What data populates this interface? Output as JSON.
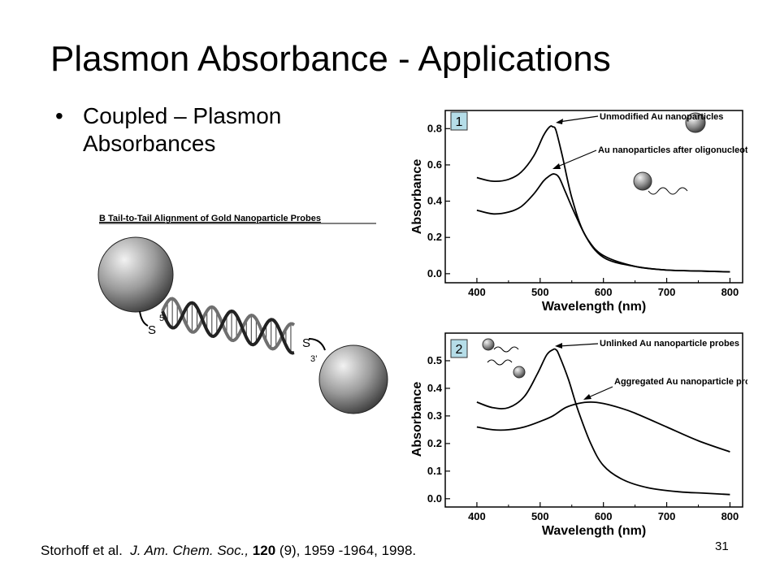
{
  "slide": {
    "title": "Plasmon Absorbance - Applications",
    "bullets": [
      "Coupled – Plasmon Absorbances"
    ],
    "page_number": "31"
  },
  "figure_dna": {
    "caption": "B Tail-to-Tail Alignment of Gold Nanoparticle Probes",
    "label_s_left": "S",
    "label_5prime": "5’",
    "label_s_right": "S",
    "label_3prime": "3’"
  },
  "citation": {
    "authors": "Storhoff et al.",
    "journal": "J. Am. Chem. Soc.,",
    "volume": "120",
    "issue_pages_year": "(9), 1959 -1964, 1998."
  },
  "chart_data": [
    {
      "type": "line",
      "panel_label": "1",
      "xlabel": "Wavelength (nm)",
      "ylabel": "Absorbance",
      "xlim": [
        350,
        820
      ],
      "ylim": [
        -0.05,
        0.9
      ],
      "xticks": [
        400,
        500,
        600,
        700,
        800
      ],
      "yticks": [
        0.0,
        0.2,
        0.4,
        0.6,
        0.8
      ],
      "ytick_labels": [
        "0.0",
        "0.2",
        "0.4",
        "0.6",
        "0.8"
      ],
      "annotations": [
        "Unmodified Au nanoparticles",
        "Au nanoparticles after oligonucleotide modification"
      ],
      "series": [
        {
          "x": [
            400,
            425,
            450,
            470,
            490,
            505,
            515,
            520,
            525,
            535,
            550,
            570,
            600,
            650,
            700,
            750,
            800
          ],
          "y": [
            0.53,
            0.51,
            0.52,
            0.56,
            0.65,
            0.76,
            0.81,
            0.81,
            0.79,
            0.65,
            0.42,
            0.22,
            0.09,
            0.04,
            0.02,
            0.015,
            0.01
          ],
          "color": "#000000"
        },
        {
          "x": [
            400,
            425,
            450,
            470,
            490,
            505,
            515,
            522,
            530,
            540,
            555,
            575,
            600,
            650,
            700,
            750,
            800
          ],
          "y": [
            0.35,
            0.33,
            0.34,
            0.37,
            0.44,
            0.51,
            0.54,
            0.55,
            0.53,
            0.45,
            0.33,
            0.19,
            0.1,
            0.04,
            0.02,
            0.015,
            0.01
          ],
          "color": "#000000"
        }
      ]
    },
    {
      "type": "line",
      "panel_label": "2",
      "xlabel": "Wavelength (nm)",
      "ylabel": "Absorbance",
      "xlim": [
        350,
        820
      ],
      "ylim": [
        -0.03,
        0.6
      ],
      "xticks": [
        400,
        500,
        600,
        700,
        800
      ],
      "yticks": [
        0.0,
        0.1,
        0.2,
        0.3,
        0.4,
        0.5
      ],
      "ytick_labels": [
        "0.0",
        "0.1",
        "0.2",
        "0.3",
        "0.4",
        "0.5"
      ],
      "annotations": [
        "Unlinked Au nanoparticle probes",
        "Aggregated Au nanoparticle probes"
      ],
      "series": [
        {
          "x": [
            400,
            425,
            450,
            475,
            495,
            510,
            520,
            525,
            530,
            545,
            560,
            580,
            600,
            630,
            670,
            720,
            760,
            800
          ],
          "y": [
            0.35,
            0.33,
            0.33,
            0.37,
            0.45,
            0.52,
            0.54,
            0.54,
            0.52,
            0.43,
            0.32,
            0.2,
            0.12,
            0.07,
            0.04,
            0.025,
            0.02,
            0.015
          ],
          "color": "#000000"
        },
        {
          "x": [
            400,
            425,
            450,
            475,
            500,
            520,
            540,
            560,
            580,
            600,
            625,
            650,
            700,
            750,
            800
          ],
          "y": [
            0.26,
            0.25,
            0.25,
            0.26,
            0.28,
            0.3,
            0.33,
            0.345,
            0.35,
            0.345,
            0.33,
            0.31,
            0.26,
            0.21,
            0.17
          ],
          "color": "#000000"
        }
      ]
    }
  ]
}
